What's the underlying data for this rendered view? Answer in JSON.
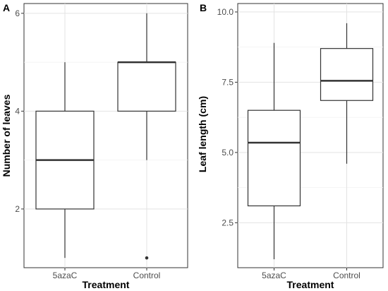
{
  "chart_data": [
    {
      "type": "boxplot",
      "panel_label": "A",
      "xlabel": "Treatment",
      "ylabel": "Number of leaves",
      "categories": [
        "5azaC",
        "Control"
      ],
      "yticks": [
        "2",
        "4",
        "6"
      ],
      "ylim": [
        0.8,
        6.2
      ],
      "grid": true,
      "boxes": [
        {
          "category": "5azaC",
          "min": 1,
          "q1": 2,
          "median": 3,
          "q3": 4,
          "max": 5,
          "outliers": []
        },
        {
          "category": "Control",
          "min": 3,
          "q1": 4,
          "median": 5,
          "q3": 5,
          "max": 6,
          "outliers": [
            1
          ]
        }
      ]
    },
    {
      "type": "boxplot",
      "panel_label": "B",
      "xlabel": "Treatment",
      "ylabel": "Leaf length (cm)",
      "categories": [
        "5azaC",
        "Control"
      ],
      "yticks": [
        "2.5",
        "5.0",
        "7.5",
        "10.0"
      ],
      "ylim": [
        0.9,
        10.3
      ],
      "grid": true,
      "boxes": [
        {
          "category": "5azaC",
          "min": 1.2,
          "q1": 3.1,
          "median": 5.35,
          "q3": 6.5,
          "max": 8.9,
          "outliers": []
        },
        {
          "category": "Control",
          "min": 4.6,
          "q1": 6.85,
          "median": 7.55,
          "q3": 8.7,
          "max": 9.6,
          "outliers": []
        }
      ]
    }
  ]
}
